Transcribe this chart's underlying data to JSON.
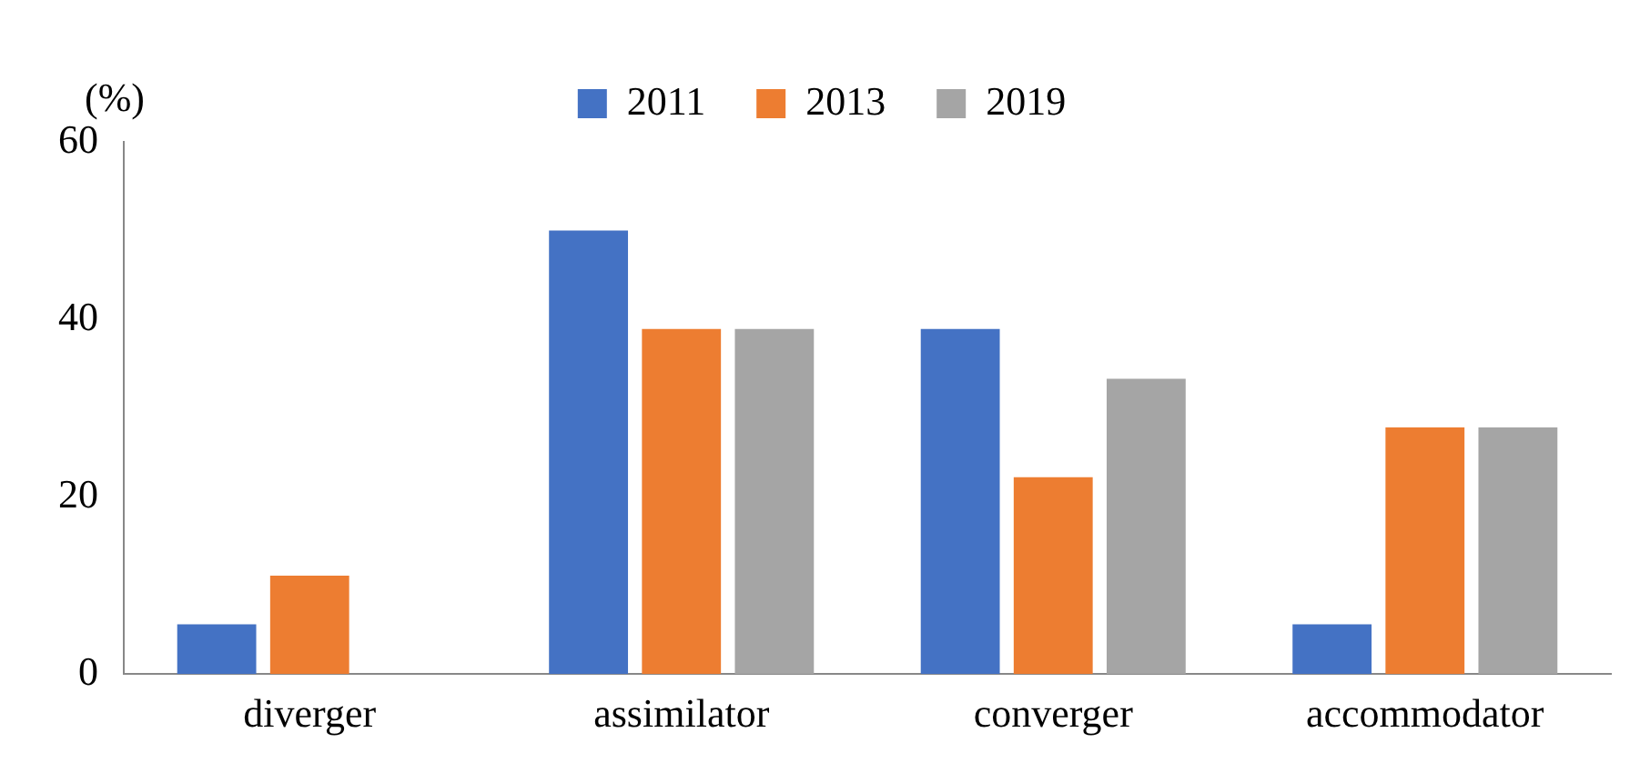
{
  "chart_data": {
    "type": "bar",
    "ylabel": "(%)",
    "categories": [
      "diverger",
      "assimilator",
      "converger",
      "accommodator"
    ],
    "series": [
      {
        "name": "2011",
        "color": "#4472c4",
        "values": [
          5.6,
          50,
          38.9,
          5.6
        ]
      },
      {
        "name": "2013",
        "color": "#ed7d31",
        "values": [
          11.1,
          38.9,
          22.2,
          27.8
        ]
      },
      {
        "name": "2019",
        "color": "#a5a5a5",
        "values": [
          0,
          38.9,
          33.3,
          27.8
        ]
      }
    ],
    "ylim": [
      0,
      60
    ],
    "yticks": [
      0,
      20,
      40,
      60
    ],
    "grid": false,
    "legend": "top"
  }
}
